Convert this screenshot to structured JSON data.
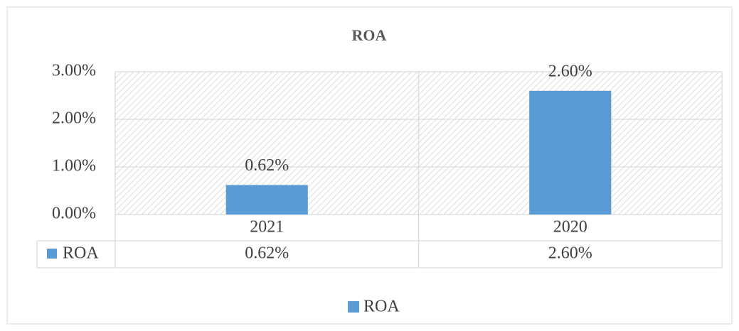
{
  "chart_data": {
    "type": "bar",
    "title": "ROA",
    "categories": [
      "2021",
      "2020"
    ],
    "series": [
      {
        "name": "ROA",
        "color": "#5b9bd5",
        "values": [
          0.62,
          2.6
        ],
        "value_labels": [
          "0.62%",
          "2.60%"
        ]
      }
    ],
    "ylim": [
      0,
      3
    ],
    "yticks": [
      {
        "value": 0,
        "label": "0.00%"
      },
      {
        "value": 1,
        "label": "1.00%"
      },
      {
        "value": 2,
        "label": "2.00%"
      },
      {
        "value": 3,
        "label": "3.00%"
      }
    ],
    "grid": true,
    "legend": "bottom"
  }
}
